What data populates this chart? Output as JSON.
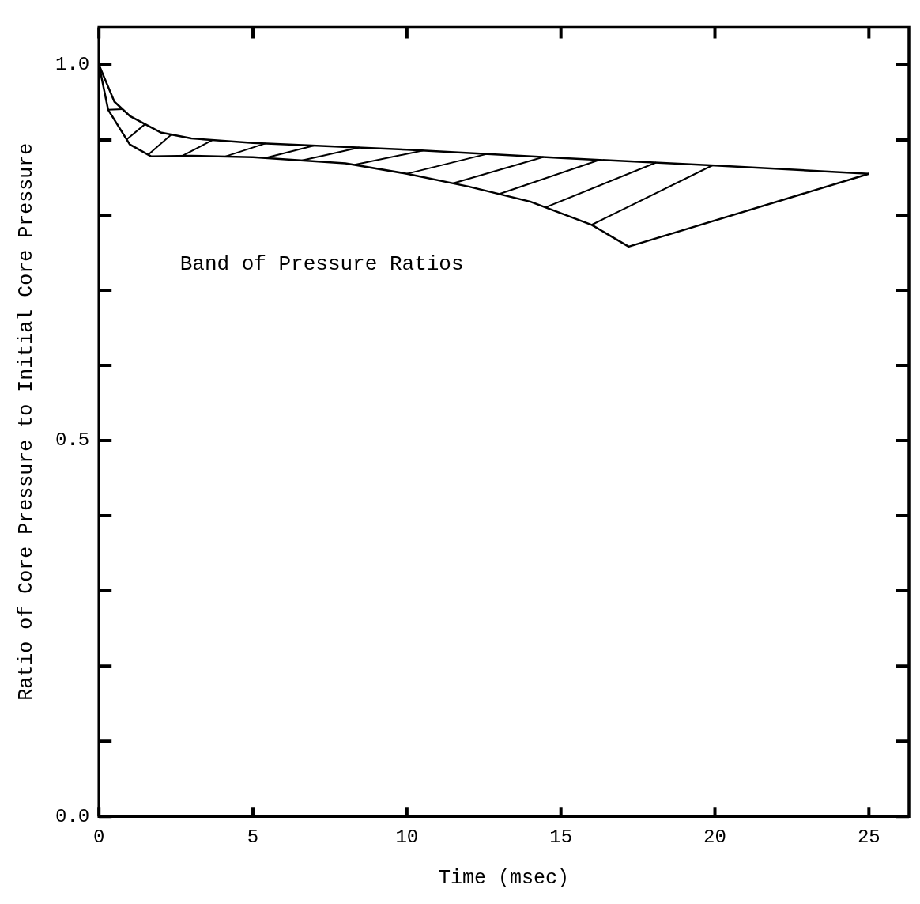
{
  "chart_data": {
    "type": "line",
    "xlabel": "Time (msec)",
    "ylabel": "Ratio of Core Pressure to Initial Core Pressure",
    "annotations": [
      "Band of Pressure Ratios"
    ],
    "series": [
      {
        "color": "#000000",
        "x": [
          0,
          0.5,
          1,
          2,
          3,
          5,
          10,
          15,
          20,
          25
        ],
        "values": [
          1.0,
          0.951,
          0.932,
          0.91,
          0.902,
          0.896,
          0.887,
          0.876,
          0.866,
          0.855
        ]
      },
      {
        "color": "#000000",
        "x": [
          0,
          0.3,
          1,
          1.7,
          3,
          5,
          8,
          10,
          12,
          14,
          16,
          17.2,
          25
        ],
        "values": [
          1.0,
          0.94,
          0.894,
          0.878,
          0.879,
          0.877,
          0.869,
          0.855,
          0.838,
          0.818,
          0.787,
          0.758,
          0.855
        ]
      }
    ],
    "xlim": [
      0,
      26.3
    ],
    "xticks": [
      0,
      5,
      10,
      15,
      20,
      25
    ],
    "ylim": [
      0,
      1.05
    ],
    "yticks": [
      {
        "value": 0,
        "label": "0.0"
      },
      {
        "value": 0.1,
        "label": null
      },
      {
        "value": 0.2,
        "label": null
      },
      {
        "value": 0.3,
        "label": null
      },
      {
        "value": 0.4,
        "label": null
      },
      {
        "value": 0.5,
        "label": "0.5"
      },
      {
        "value": 0.6,
        "label": null
      },
      {
        "value": 0.7,
        "label": null
      },
      {
        "value": 0.8,
        "label": null
      },
      {
        "value": 0.9,
        "label": null
      },
      {
        "value": 1.0,
        "label": "1.0"
      }
    ],
    "grid": false,
    "legend": false,
    "marker": "none",
    "line_style": "solid"
  }
}
